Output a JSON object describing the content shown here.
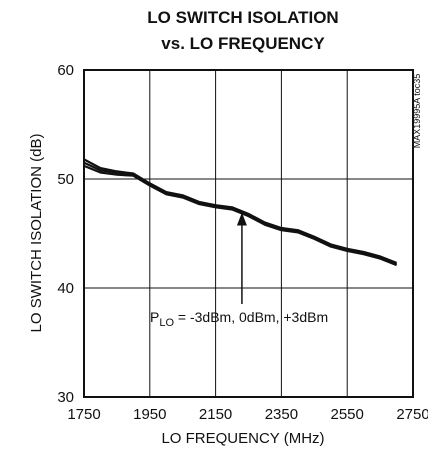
{
  "chart_data": {
    "type": "line",
    "title_line1": "LO SWITCH ISOLATION",
    "title_line2": "vs. LO FREQUENCY",
    "xlabel": "LO FREQUENCY (MHz)",
    "ylabel": "LO SWITCH ISOLATION (dB)",
    "xlim": [
      1750,
      2750
    ],
    "ylim": [
      30,
      60
    ],
    "xticks": [
      1750,
      1950,
      2150,
      2350,
      2550,
      2750
    ],
    "yticks": [
      30,
      40,
      50,
      60
    ],
    "grid": true,
    "part_code": "MAX19995A toc35",
    "annotation": {
      "label_main": "P",
      "label_sub": "LO",
      "label_rest": " = -3dBm, 0dBm, +3dBm",
      "arrow_target": [
        2230,
        47.2
      ]
    },
    "series": [
      {
        "values_x": [
          1750,
          1800,
          1850,
          1900,
          1950,
          2000,
          2050,
          2100,
          2150,
          2200,
          2250,
          2300,
          2350,
          2400,
          2450,
          2500,
          2550,
          2600,
          2650,
          2700
        ],
        "values_y": [
          51.8,
          51.0,
          50.7,
          50.5,
          49.6,
          48.8,
          48.5,
          47.9,
          47.6,
          47.4,
          46.8,
          46.0,
          45.5,
          45.3,
          44.7,
          44.0,
          43.6,
          43.3,
          42.9,
          42.3
        ]
      },
      {
        "values_x": [
          1750,
          1800,
          1850,
          1900,
          1950,
          2000,
          2050,
          2100,
          2150,
          2200,
          2250,
          2300,
          2350,
          2400,
          2450,
          2500,
          2550,
          2600,
          2650,
          2700
        ],
        "values_y": [
          51.5,
          50.8,
          50.6,
          50.4,
          49.5,
          48.7,
          48.4,
          47.8,
          47.5,
          47.3,
          46.7,
          45.9,
          45.4,
          45.2,
          44.6,
          43.9,
          43.5,
          43.2,
          42.8,
          42.2
        ]
      },
      {
        "values_x": [
          1750,
          1800,
          1850,
          1900,
          1950,
          2000,
          2050,
          2100,
          2150,
          2200,
          2250,
          2300,
          2350,
          2400,
          2450,
          2500,
          2550,
          2600,
          2650,
          2700
        ],
        "values_y": [
          51.2,
          50.6,
          50.4,
          50.3,
          49.4,
          48.6,
          48.3,
          47.7,
          47.4,
          47.2,
          46.6,
          45.8,
          45.3,
          45.1,
          44.5,
          43.8,
          43.4,
          43.1,
          42.7,
          42.1
        ]
      }
    ]
  }
}
